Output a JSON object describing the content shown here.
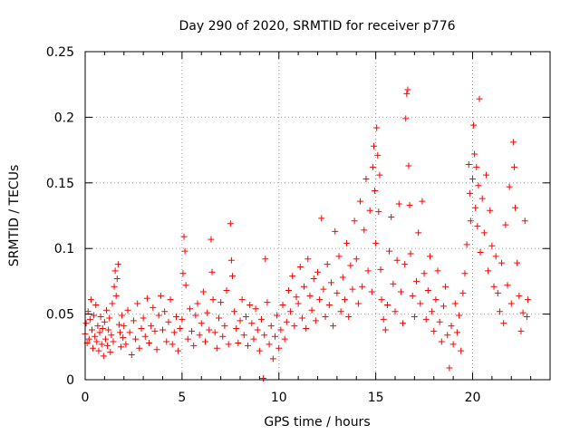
{
  "chart_data": {
    "type": "scatter",
    "title": "Day 290 of 2020, SRMTID for receiver p776",
    "xlabel": "GPS time / hours",
    "ylabel": "SRMTID / TECUs",
    "xlim": [
      0,
      24
    ],
    "ylim": [
      0,
      0.25
    ],
    "xticks": [
      0,
      5,
      10,
      15,
      20
    ],
    "yticks": [
      0,
      0.05,
      0.1,
      0.15,
      0.2,
      0.25
    ],
    "xtick_labels": [
      "0",
      "5",
      "10",
      "15",
      "20"
    ],
    "ytick_labels": [
      "0",
      "0.05",
      "0.1",
      "0.15",
      "0.2",
      "0.25"
    ],
    "grid": true,
    "marker": "+",
    "series": [
      {
        "name": "SRMTID",
        "color": "#ff0000",
        "points": [
          [
            0.0,
            0.035
          ],
          [
            0.05,
            0.043
          ],
          [
            0.1,
            0.028
          ],
          [
            0.15,
            0.052
          ],
          [
            0.2,
            0.031
          ],
          [
            0.25,
            0.046
          ],
          [
            0.3,
            0.061
          ],
          [
            0.35,
            0.038
          ],
          [
            0.4,
            0.024
          ],
          [
            0.45,
            0.049
          ],
          [
            0.5,
            0.033
          ],
          [
            0.55,
            0.057
          ],
          [
            0.6,
            0.029
          ],
          [
            0.65,
            0.041
          ],
          [
            0.7,
            0.022
          ],
          [
            0.75,
            0.036
          ],
          [
            0.8,
            0.048
          ],
          [
            0.85,
            0.027
          ],
          [
            0.9,
            0.039
          ],
          [
            0.95,
            0.018
          ],
          [
            1.0,
            0.044
          ],
          [
            1.05,
            0.031
          ],
          [
            1.1,
            0.053
          ],
          [
            1.15,
            0.026
          ],
          [
            1.2,
            0.038
          ],
          [
            1.25,
            0.047
          ],
          [
            1.3,
            0.021
          ],
          [
            1.35,
            0.034
          ],
          [
            1.4,
            0.058
          ],
          [
            1.45,
            0.029
          ],
          [
            1.5,
            0.071
          ],
          [
            1.55,
            0.083
          ],
          [
            1.6,
            0.064
          ],
          [
            1.65,
            0.077
          ],
          [
            1.7,
            0.088
          ],
          [
            1.75,
            0.042
          ],
          [
            1.8,
            0.036
          ],
          [
            1.85,
            0.025
          ],
          [
            1.9,
            0.049
          ],
          [
            1.95,
            0.032
          ],
          [
            2.0,
            0.041
          ],
          [
            2.1,
            0.027
          ],
          [
            2.2,
            0.053
          ],
          [
            2.3,
            0.036
          ],
          [
            2.4,
            0.019
          ],
          [
            2.5,
            0.045
          ],
          [
            2.6,
            0.031
          ],
          [
            2.7,
            0.058
          ],
          [
            2.8,
            0.024
          ],
          [
            2.9,
            0.039
          ],
          [
            3.0,
            0.047
          ],
          [
            3.1,
            0.033
          ],
          [
            3.2,
            0.062
          ],
          [
            3.3,
            0.028
          ],
          [
            3.4,
            0.041
          ],
          [
            3.5,
            0.055
          ],
          [
            3.6,
            0.037
          ],
          [
            3.7,
            0.023
          ],
          [
            3.8,
            0.049
          ],
          [
            3.9,
            0.064
          ],
          [
            4.0,
            0.038
          ],
          [
            4.1,
            0.052
          ],
          [
            4.2,
            0.029
          ],
          [
            4.3,
            0.044
          ],
          [
            4.4,
            0.061
          ],
          [
            4.5,
            0.027
          ],
          [
            4.6,
            0.036
          ],
          [
            4.7,
            0.048
          ],
          [
            4.8,
            0.022
          ],
          [
            4.9,
            0.039
          ],
          [
            5.0,
            0.046
          ],
          [
            5.05,
            0.081
          ],
          [
            5.1,
            0.109
          ],
          [
            5.15,
            0.098
          ],
          [
            5.2,
            0.072
          ],
          [
            5.3,
            0.031
          ],
          [
            5.4,
            0.054
          ],
          [
            5.5,
            0.037
          ],
          [
            5.6,
            0.026
          ],
          [
            5.7,
            0.049
          ],
          [
            5.8,
            0.058
          ],
          [
            5.9,
            0.034
          ],
          [
            6.0,
            0.043
          ],
          [
            6.1,
            0.067
          ],
          [
            6.2,
            0.029
          ],
          [
            6.3,
            0.051
          ],
          [
            6.4,
            0.038
          ],
          [
            6.5,
            0.107
          ],
          [
            6.55,
            0.082
          ],
          [
            6.6,
            0.061
          ],
          [
            6.7,
            0.036
          ],
          [
            6.8,
            0.024
          ],
          [
            6.9,
            0.047
          ],
          [
            7.0,
            0.059
          ],
          [
            7.1,
            0.033
          ],
          [
            7.2,
            0.041
          ],
          [
            7.3,
            0.068
          ],
          [
            7.4,
            0.027
          ],
          [
            7.5,
            0.119
          ],
          [
            7.55,
            0.091
          ],
          [
            7.6,
            0.079
          ],
          [
            7.7,
            0.052
          ],
          [
            7.8,
            0.039
          ],
          [
            7.9,
            0.028
          ],
          [
            8.0,
            0.045
          ],
          [
            8.1,
            0.061
          ],
          [
            8.2,
            0.034
          ],
          [
            8.3,
            0.048
          ],
          [
            8.4,
            0.026
          ],
          [
            8.5,
            0.057
          ],
          [
            8.6,
            0.043
          ],
          [
            8.7,
            0.031
          ],
          [
            8.8,
            0.054
          ],
          [
            8.9,
            0.038
          ],
          [
            9.0,
            0.022
          ],
          [
            9.1,
            0.046
          ],
          [
            9.2,
            0.001
          ],
          [
            9.25,
            0.034
          ],
          [
            9.3,
            0.092
          ],
          [
            9.4,
            0.059
          ],
          [
            9.5,
            0.027
          ],
          [
            9.6,
            0.041
          ],
          [
            9.7,
            0.016
          ],
          [
            9.8,
            0.033
          ],
          [
            9.9,
            0.049
          ],
          [
            10.0,
            0.024
          ],
          [
            10.1,
            0.038
          ],
          [
            10.2,
            0.057
          ],
          [
            10.3,
            0.031
          ],
          [
            10.4,
            0.044
          ],
          [
            10.5,
            0.068
          ],
          [
            10.6,
            0.052
          ],
          [
            10.7,
            0.079
          ],
          [
            10.8,
            0.041
          ],
          [
            10.9,
            0.063
          ],
          [
            11.0,
            0.058
          ],
          [
            11.1,
            0.086
          ],
          [
            11.2,
            0.047
          ],
          [
            11.3,
            0.071
          ],
          [
            11.4,
            0.039
          ],
          [
            11.5,
            0.092
          ],
          [
            11.6,
            0.064
          ],
          [
            11.7,
            0.053
          ],
          [
            11.8,
            0.077
          ],
          [
            11.9,
            0.045
          ],
          [
            12.0,
            0.082
          ],
          [
            12.1,
            0.061
          ],
          [
            12.2,
            0.123
          ],
          [
            12.3,
            0.069
          ],
          [
            12.4,
            0.048
          ],
          [
            12.5,
            0.088
          ],
          [
            12.6,
            0.057
          ],
          [
            12.7,
            0.074
          ],
          [
            12.8,
            0.041
          ],
          [
            12.9,
            0.113
          ],
          [
            13.0,
            0.066
          ],
          [
            13.1,
            0.094
          ],
          [
            13.2,
            0.052
          ],
          [
            13.3,
            0.078
          ],
          [
            13.4,
            0.061
          ],
          [
            13.5,
            0.104
          ],
          [
            13.6,
            0.048
          ],
          [
            13.7,
            0.087
          ],
          [
            13.8,
            0.069
          ],
          [
            13.9,
            0.121
          ],
          [
            14.0,
            0.092
          ],
          [
            14.1,
            0.058
          ],
          [
            14.2,
            0.136
          ],
          [
            14.3,
            0.071
          ],
          [
            14.4,
            0.114
          ],
          [
            14.5,
            0.153
          ],
          [
            14.6,
            0.083
          ],
          [
            14.7,
            0.129
          ],
          [
            14.8,
            0.067
          ],
          [
            14.85,
            0.162
          ],
          [
            14.9,
            0.178
          ],
          [
            14.95,
            0.144
          ],
          [
            15.0,
            0.104
          ],
          [
            15.05,
            0.192
          ],
          [
            15.1,
            0.171
          ],
          [
            15.15,
            0.128
          ],
          [
            15.2,
            0.156
          ],
          [
            15.25,
            0.084
          ],
          [
            15.3,
            0.061
          ],
          [
            15.4,
            0.046
          ],
          [
            15.5,
            0.038
          ],
          [
            15.6,
            0.057
          ],
          [
            15.7,
            0.098
          ],
          [
            15.8,
            0.124
          ],
          [
            15.9,
            0.073
          ],
          [
            16.0,
            0.052
          ],
          [
            16.1,
            0.091
          ],
          [
            16.2,
            0.134
          ],
          [
            16.3,
            0.067
          ],
          [
            16.4,
            0.043
          ],
          [
            16.5,
            0.088
          ],
          [
            16.55,
            0.199
          ],
          [
            16.6,
            0.218
          ],
          [
            16.65,
            0.221
          ],
          [
            16.7,
            0.163
          ],
          [
            16.75,
            0.133
          ],
          [
            16.8,
            0.096
          ],
          [
            16.9,
            0.064
          ],
          [
            17.0,
            0.048
          ],
          [
            17.1,
            0.075
          ],
          [
            17.2,
            0.112
          ],
          [
            17.3,
            0.058
          ],
          [
            17.4,
            0.136
          ],
          [
            17.5,
            0.081
          ],
          [
            17.6,
            0.046
          ],
          [
            17.7,
            0.068
          ],
          [
            17.8,
            0.094
          ],
          [
            17.9,
            0.052
          ],
          [
            18.0,
            0.037
          ],
          [
            18.1,
            0.061
          ],
          [
            18.2,
            0.083
          ],
          [
            18.3,
            0.044
          ],
          [
            18.4,
            0.029
          ],
          [
            18.5,
            0.056
          ],
          [
            18.6,
            0.071
          ],
          [
            18.7,
            0.034
          ],
          [
            18.8,
            0.009
          ],
          [
            18.9,
            0.041
          ],
          [
            19.0,
            0.027
          ],
          [
            19.1,
            0.058
          ],
          [
            19.2,
            0.036
          ],
          [
            19.3,
            0.049
          ],
          [
            19.4,
            0.022
          ],
          [
            19.5,
            0.066
          ],
          [
            19.6,
            0.081
          ],
          [
            19.7,
            0.103
          ],
          [
            19.8,
            0.164
          ],
          [
            19.85,
            0.142
          ],
          [
            19.9,
            0.121
          ],
          [
            20.0,
            0.153
          ],
          [
            20.05,
            0.194
          ],
          [
            20.1,
            0.172
          ],
          [
            20.15,
            0.131
          ],
          [
            20.2,
            0.162
          ],
          [
            20.25,
            0.117
          ],
          [
            20.3,
            0.148
          ],
          [
            20.35,
            0.214
          ],
          [
            20.4,
            0.097
          ],
          [
            20.5,
            0.138
          ],
          [
            20.6,
            0.112
          ],
          [
            20.7,
            0.156
          ],
          [
            20.8,
            0.083
          ],
          [
            20.9,
            0.129
          ],
          [
            21.0,
            0.102
          ],
          [
            21.1,
            0.071
          ],
          [
            21.2,
            0.094
          ],
          [
            21.3,
            0.066
          ],
          [
            21.4,
            0.052
          ],
          [
            21.5,
            0.089
          ],
          [
            21.6,
            0.043
          ],
          [
            21.7,
            0.118
          ],
          [
            21.8,
            0.072
          ],
          [
            21.9,
            0.147
          ],
          [
            22.0,
            0.058
          ],
          [
            22.1,
            0.181
          ],
          [
            22.15,
            0.162
          ],
          [
            22.2,
            0.131
          ],
          [
            22.3,
            0.089
          ],
          [
            22.4,
            0.064
          ],
          [
            22.5,
            0.037
          ],
          [
            22.6,
            0.051
          ],
          [
            22.7,
            0.121
          ],
          [
            22.8,
            0.048
          ],
          [
            22.85,
            0.061
          ]
        ]
      }
    ]
  }
}
